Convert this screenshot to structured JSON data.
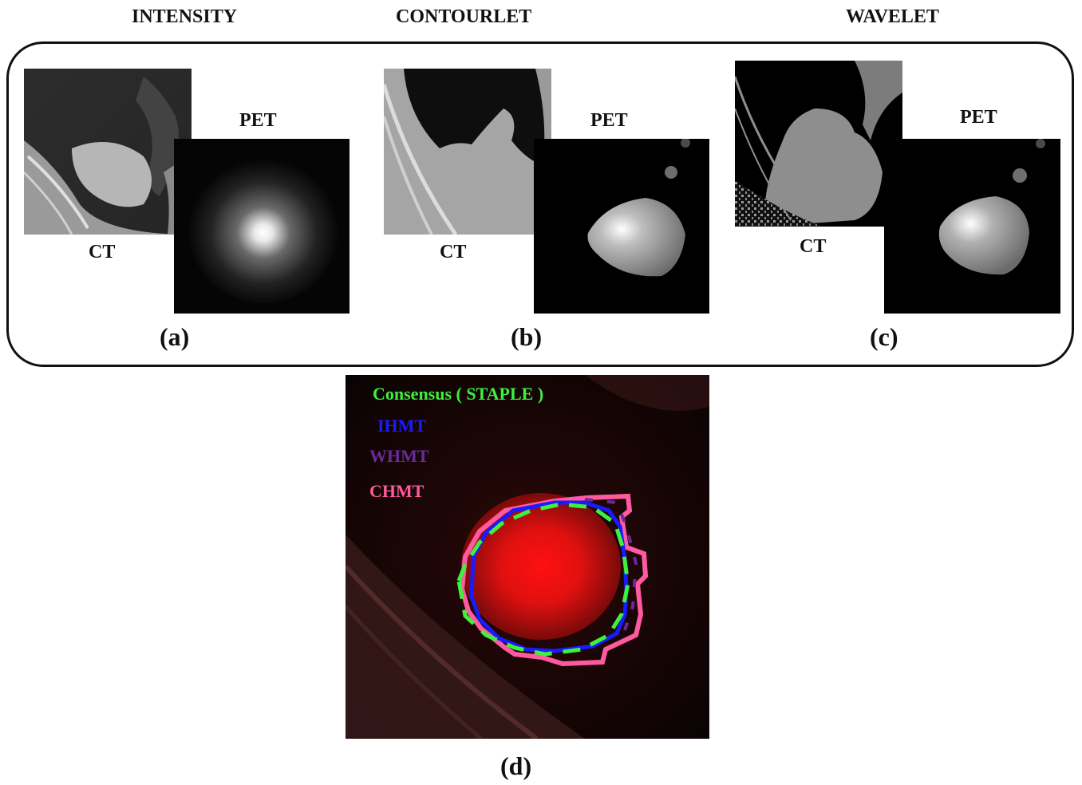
{
  "headers": {
    "intensity": "INTENSITY",
    "contourlet": "CONTOURLET",
    "wavelet": "WAVELET"
  },
  "modality": {
    "ct": "CT",
    "pet": "PET"
  },
  "captions": {
    "a": "(a)",
    "b": "(b)",
    "c": "(c)",
    "d": "(d)"
  },
  "legend": {
    "consensus": {
      "label": "Consensus ( STAPLE )",
      "color": "#3df23d"
    },
    "ihmt": {
      "label": "IHMT",
      "color": "#1a1aff"
    },
    "whmt": {
      "label": "WHMT",
      "color": "#6a2a9a"
    },
    "chmt": {
      "label": "CHMT",
      "color": "#ff5aa0"
    }
  }
}
